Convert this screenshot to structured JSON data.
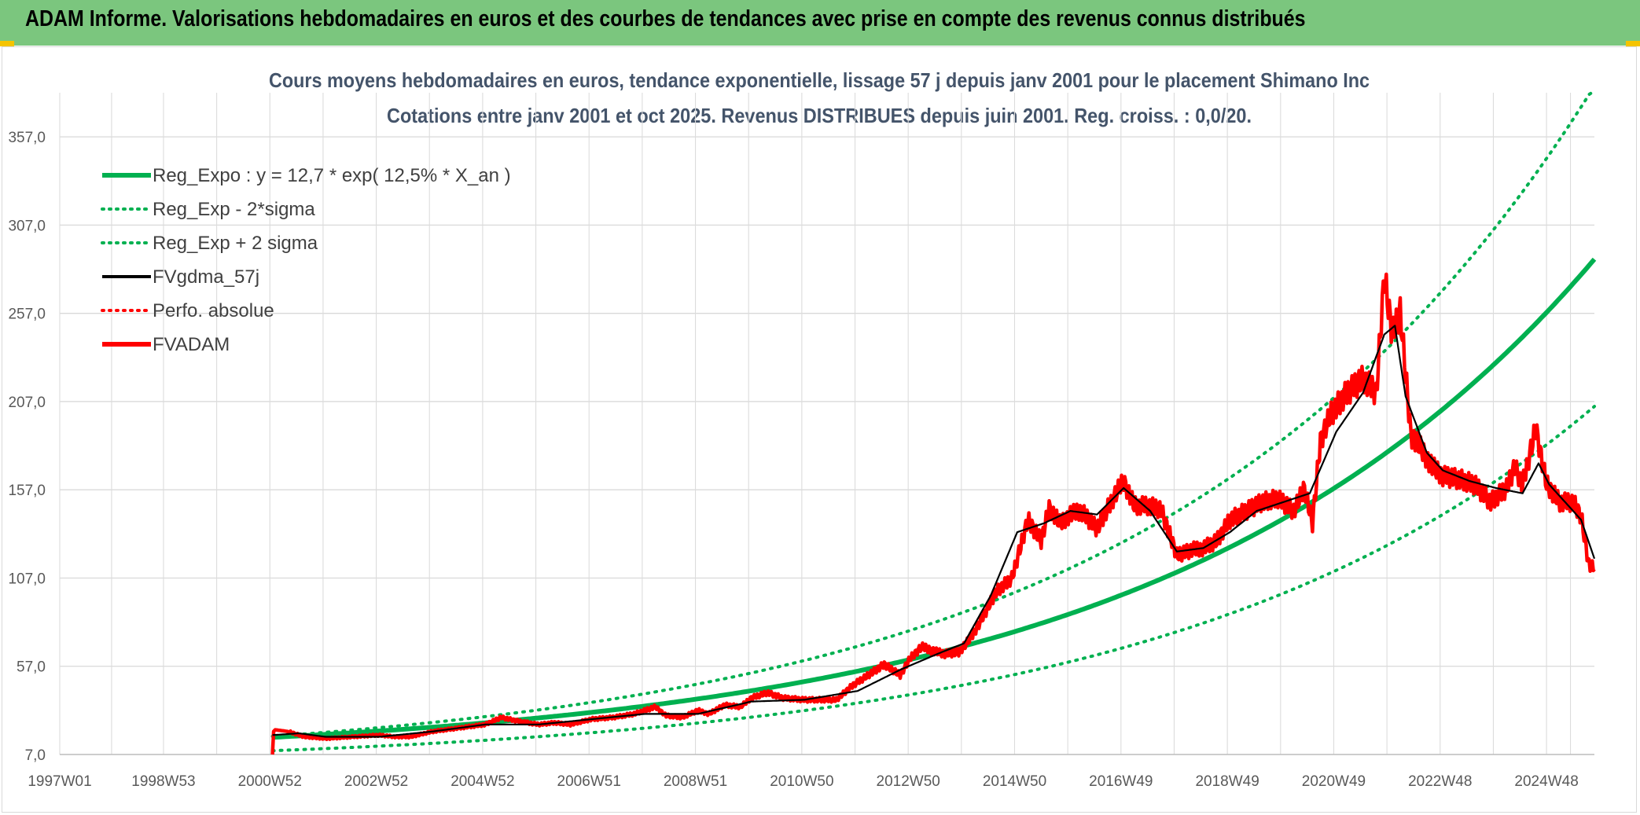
{
  "header": {
    "title": "ADAM Informe. Valorisations hebdomadaires en euros et des courbes de tendances avec prise en compte des revenus connus distribués"
  },
  "colors": {
    "header_bg": "#7bc67e",
    "green": "#00b050",
    "black": "#000000",
    "red": "#ff0000"
  },
  "chart_data": {
    "type": "line",
    "title": "Cours moyens hebdomadaires en euros, tendance exponentielle, lissage 57 j depuis janv 2001 pour le placement Shimano Inc",
    "subtitle": "Cotations entre janv 2001 et oct 2025. Revenus DISTRIBUES depuis juin 2001. Reg. croiss. : 0,0/20.",
    "x_range": [
      1997.0,
      2025.85
    ],
    "ylim": [
      7,
      382
    ],
    "y_ticks": [
      7,
      57,
      107,
      157,
      207,
      257,
      307,
      357
    ],
    "y_tick_labels": [
      "7,0",
      "57,0",
      "107,0",
      "157,0",
      "207,0",
      "257,0",
      "307,0",
      "357,0"
    ],
    "x_ticks": [
      1997.0,
      1998.95,
      2000.95,
      2002.95,
      2004.95,
      2006.95,
      2008.95,
      2010.95,
      2012.95,
      2014.95,
      2016.95,
      2018.95,
      2020.95,
      2022.95,
      2024.95
    ],
    "x_tick_labels": [
      "1997W01",
      "1998W53",
      "2000W52",
      "2002W52",
      "2004W52",
      "2006W51",
      "2008W51",
      "2010W50",
      "2012W50",
      "2014W50",
      "2016W49",
      "2018W49",
      "2020W49",
      "2022W48",
      "2024W48"
    ],
    "grid": true,
    "legend_position": "top-left",
    "legend": [
      {
        "label": "Reg_Expo : y = 12,7 * exp( 12,5% *  X_an )",
        "color": "#00b050",
        "style": "solid-thick"
      },
      {
        "label": "Reg_Exp - 2*sigma",
        "color": "#00b050",
        "style": "dotted"
      },
      {
        "label": "Reg_Exp + 2 sigma",
        "color": "#00b050",
        "style": "dotted"
      },
      {
        "label": "FVgdma_57j",
        "color": "#000000",
        "style": "solid"
      },
      {
        "label": "Perfo. absolue",
        "color": "#ff0000",
        "style": "dotted"
      },
      {
        "label": "FVADAM",
        "color": "#ff0000",
        "style": "solid-thick"
      }
    ],
    "regression": {
      "a": 12.7,
      "b": 0.125,
      "x0": 2001.0,
      "lower_factor": 0.72,
      "upper_factor": 1.36,
      "cap": 382
    },
    "series": [
      {
        "name": "FVADAM",
        "x": [
          2001.0,
          2001.02,
          2001.05,
          2001.3,
          2001.6,
          2002.0,
          2002.5,
          2003.0,
          2003.3,
          2003.6,
          2004.0,
          2004.5,
          2005.0,
          2005.3,
          2005.6,
          2006.0,
          2006.3,
          2006.6,
          2007.0,
          2007.4,
          2007.8,
          2008.2,
          2008.4,
          2008.7,
          2009.0,
          2009.2,
          2009.5,
          2009.8,
          2010.0,
          2010.3,
          2010.6,
          2011.0,
          2011.3,
          2011.6,
          2011.9,
          2012.2,
          2012.5,
          2012.8,
          2013.0,
          2013.2,
          2013.4,
          2013.6,
          2013.9,
          2014.1,
          2014.3,
          2014.6,
          2014.9,
          2015.2,
          2015.45,
          2015.6,
          2015.8,
          2016.0,
          2016.2,
          2016.5,
          2016.8,
          2017.0,
          2017.2,
          2017.45,
          2017.7,
          2018.0,
          2018.3,
          2018.5,
          2018.75,
          2019.0,
          2019.3,
          2019.6,
          2019.9,
          2020.2,
          2020.4,
          2020.55,
          2020.7,
          2020.9,
          2021.2,
          2021.5,
          2021.75,
          2021.9,
          2022.05,
          2022.2,
          2022.4,
          2022.6,
          2022.8,
          2023.0,
          2023.3,
          2023.6,
          2023.9,
          2024.2,
          2024.35,
          2024.5,
          2024.75,
          2024.95,
          2025.2,
          2025.45,
          2025.6,
          2025.75,
          2025.85
        ],
        "values": [
          7,
          20,
          21,
          20,
          17,
          16,
          17,
          18,
          17,
          17,
          20,
          22,
          24,
          28,
          26,
          24,
          25,
          24,
          27,
          28,
          30,
          34,
          29,
          28,
          32,
          30,
          35,
          34,
          39,
          42,
          39,
          38,
          38,
          38,
          46,
          52,
          58,
          52,
          62,
          68,
          66,
          64,
          65,
          72,
          82,
          99,
          107,
          140,
          128,
          147,
          138,
          143,
          145,
          135,
          152,
          162,
          148,
          148,
          146,
          120,
          123,
          124,
          128,
          140,
          145,
          150,
          152,
          145,
          158,
          138,
          185,
          200,
          212,
          220,
          212,
          278,
          245,
          258,
          188,
          180,
          170,
          165,
          163,
          160,
          150,
          158,
          170,
          160,
          192,
          160,
          150,
          150,
          142,
          114,
          112
        ]
      },
      {
        "name": "FVgdma_57j",
        "x": [
          2001.0,
          2001.5,
          2002.0,
          2003.0,
          2004.0,
          2005.0,
          2006.0,
          2007.0,
          2008.0,
          2009.0,
          2010.0,
          2011.0,
          2012.0,
          2012.8,
          2013.5,
          2014.0,
          2014.5,
          2015.0,
          2015.5,
          2016.0,
          2016.5,
          2017.0,
          2017.5,
          2018.0,
          2018.5,
          2019.0,
          2019.5,
          2020.0,
          2020.5,
          2021.0,
          2021.5,
          2021.9,
          2022.1,
          2022.3,
          2022.7,
          2023.0,
          2023.5,
          2024.0,
          2024.5,
          2024.8,
          2025.0,
          2025.3,
          2025.6,
          2025.85
        ],
        "values": [
          18,
          19,
          17,
          17,
          20,
          24,
          24,
          27,
          30,
          30,
          37,
          38,
          43,
          55,
          64,
          70,
          97,
          133,
          138,
          145,
          143,
          158,
          145,
          122,
          124,
          133,
          145,
          150,
          155,
          190,
          212,
          245,
          250,
          210,
          178,
          168,
          162,
          158,
          155,
          172,
          160,
          150,
          140,
          118
        ]
      }
    ]
  }
}
